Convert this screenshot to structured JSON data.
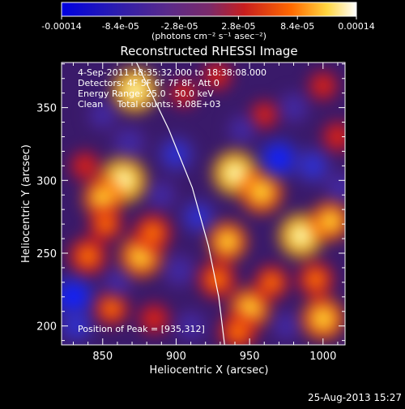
{
  "chart_data": {
    "type": "heatmap",
    "title": "Reconstructed RHESSI Image",
    "xlabel": "Heliocentric X (arcsec)",
    "ylabel": "Heliocentric Y (arcsec)",
    "xlim": [
      822,
      1015
    ],
    "ylim": [
      187,
      381
    ],
    "x_ticks": [
      850,
      900,
      950,
      1000
    ],
    "y_ticks": [
      200,
      250,
      300,
      350
    ],
    "colorbar": {
      "range": [
        -0.00014,
        0.00014
      ],
      "tick_labels": [
        "-0.00014",
        "-8.4e-05",
        "-2.8e-05",
        "2.8e-05",
        "8.4e-05",
        "0.00014"
      ],
      "tick_values": [
        -0.00014,
        -8.4e-05,
        -2.8e-05,
        2.8e-05,
        8.4e-05,
        0.00014
      ],
      "units_label": "(photons cm⁻² s⁻¹ asec⁻²)"
    },
    "info_lines": [
      "4-Sep-2011 18:35:32.000 to 18:38:08.000",
      "Detectors: 4F 5F 6F 7F 8F, Att 0",
      "Energy Range: 25.0 - 50.0 keV",
      "Clean     Total counts: 3.08E+03"
    ],
    "peak_text": "Position of Peak = [935,312]",
    "peak": [
      935,
      312
    ],
    "limb_curve": [
      [
        873,
        381
      ],
      [
        895,
        335
      ],
      [
        911,
        295
      ],
      [
        922,
        255
      ],
      [
        929,
        220
      ],
      [
        933,
        187
      ]
    ],
    "sources": [
      {
        "x": 872,
        "y": 362,
        "v": 0.00012
      },
      {
        "x": 864,
        "y": 300,
        "v": 0.00013
      },
      {
        "x": 850,
        "y": 288,
        "v": 9e-05
      },
      {
        "x": 876,
        "y": 248,
        "v": 0.00011
      },
      {
        "x": 884,
        "y": 264,
        "v": 8e-05
      },
      {
        "x": 852,
        "y": 270,
        "v": 6e-05
      },
      {
        "x": 840,
        "y": 248,
        "v": 8e-05
      },
      {
        "x": 856,
        "y": 212,
        "v": 6e-05
      },
      {
        "x": 885,
        "y": 205,
        "v": 5e-05
      },
      {
        "x": 838,
        "y": 310,
        "v": 4e-05
      },
      {
        "x": 905,
        "y": 360,
        "v": 3e-05
      },
      {
        "x": 928,
        "y": 372,
        "v": 4e-05
      },
      {
        "x": 940,
        "y": 305,
        "v": 0.00012
      },
      {
        "x": 958,
        "y": 292,
        "v": 0.00011
      },
      {
        "x": 935,
        "y": 258,
        "v": 9e-05
      },
      {
        "x": 928,
        "y": 232,
        "v": 8e-05
      },
      {
        "x": 950,
        "y": 212,
        "v": 0.0001
      },
      {
        "x": 942,
        "y": 196,
        "v": 8e-05
      },
      {
        "x": 985,
        "y": 262,
        "v": 0.00012
      },
      {
        "x": 995,
        "y": 232,
        "v": 7e-05
      },
      {
        "x": 1005,
        "y": 272,
        "v": 9e-05
      },
      {
        "x": 1000,
        "y": 205,
        "v": 0.00011
      },
      {
        "x": 965,
        "y": 230,
        "v": 6e-05
      },
      {
        "x": 1010,
        "y": 330,
        "v": 5e-05
      },
      {
        "x": 1000,
        "y": 365,
        "v": 4e-05
      },
      {
        "x": 960,
        "y": 345,
        "v": 3e-05
      },
      {
        "x": 830,
        "y": 220,
        "v": -0.00012
      },
      {
        "x": 832,
        "y": 200,
        "v": -7e-05
      },
      {
        "x": 900,
        "y": 318,
        "v": -8e-05
      },
      {
        "x": 868,
        "y": 326,
        "v": -6e-05
      },
      {
        "x": 915,
        "y": 275,
        "v": -7e-05
      },
      {
        "x": 970,
        "y": 315,
        "v": -0.0001
      },
      {
        "x": 993,
        "y": 310,
        "v": -8e-05
      },
      {
        "x": 902,
        "y": 238,
        "v": -6e-05
      },
      {
        "x": 980,
        "y": 350,
        "v": -5e-05
      },
      {
        "x": 910,
        "y": 200,
        "v": -5e-05
      },
      {
        "x": 860,
        "y": 230,
        "v": -4e-05
      },
      {
        "x": 1012,
        "y": 295,
        "v": -5e-05
      },
      {
        "x": 890,
        "y": 290,
        "v": -4e-05
      },
      {
        "x": 975,
        "y": 200,
        "v": -4e-05
      },
      {
        "x": 945,
        "y": 335,
        "v": -4e-05
      },
      {
        "x": 850,
        "y": 345,
        "v": -4e-05
      }
    ]
  },
  "footer": {
    "timestamp": "25-Aug-2013 15:27"
  }
}
